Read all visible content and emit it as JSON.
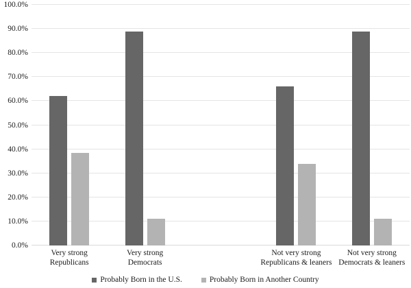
{
  "chart_data": {
    "type": "bar",
    "title": "",
    "categories": [
      [
        "Very strong",
        "Republicans"
      ],
      [
        "Very strong",
        "Democrats"
      ],
      [],
      [
        "Not very strong",
        "Republicans & leaners"
      ],
      [
        "Not very strong",
        "Democrats & leaners"
      ]
    ],
    "series": [
      {
        "name": "Probably Born in the U.S.",
        "color": "#666666",
        "values": [
          62,
          89,
          null,
          66,
          89
        ]
      },
      {
        "name": "Probably Born in Another Country",
        "color": "#b3b3b3",
        "values": [
          38.5,
          11,
          null,
          34,
          11
        ]
      }
    ],
    "y_axis": {
      "ticks": [
        "0.0%",
        "10.0%",
        "20.0%",
        "30.0%",
        "40.0%",
        "50.0%",
        "60.0%",
        "70.0%",
        "80.0%",
        "90.0%",
        "100.0%"
      ],
      "min": 0,
      "max": 100,
      "step": 10
    },
    "grid": true,
    "legend_position": "bottom",
    "colors": {
      "gridline": "#e4e4e4",
      "axis_line": "#d9d9d9",
      "text": "#1a1a1a",
      "background": "#ffffff"
    }
  }
}
